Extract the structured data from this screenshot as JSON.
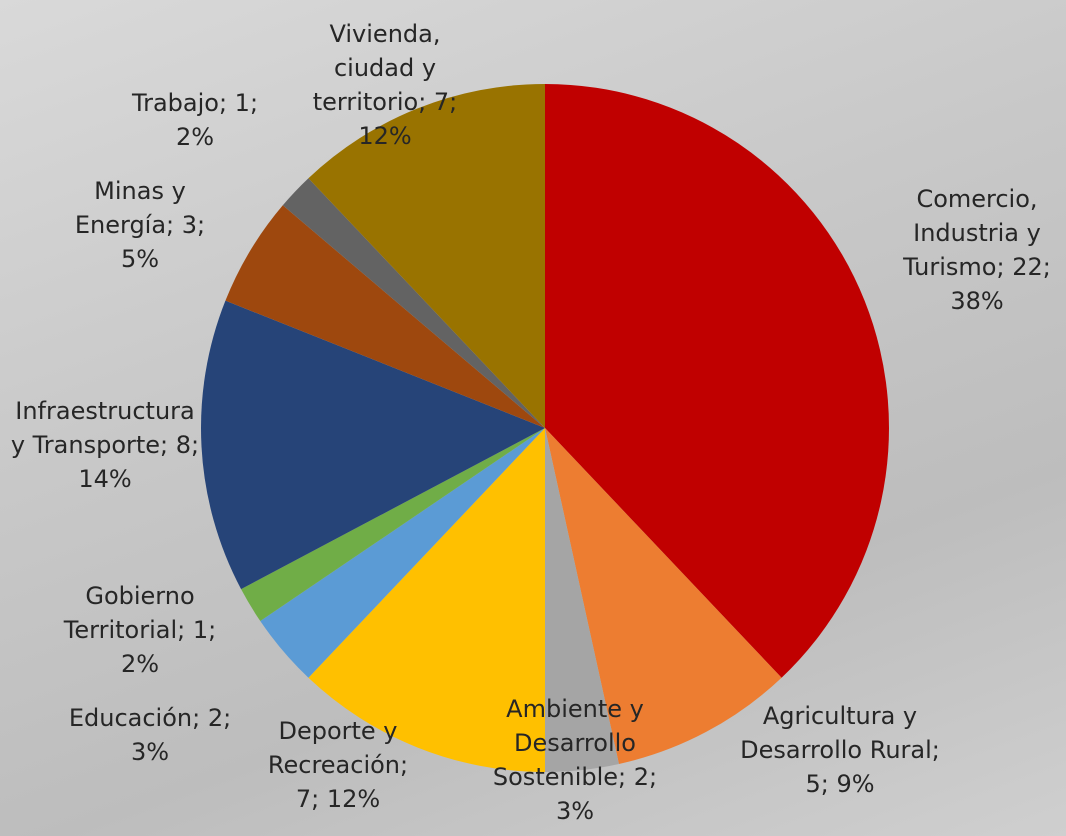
{
  "chart_data": {
    "type": "pie",
    "categories": [
      "Comercio, Industria y Turismo",
      "Agricultura y Desarrollo Rural",
      "Ambiente y Desarrollo Sostenible",
      "Deporte y Recreación",
      "Educación",
      "Gobierno Territorial",
      "Infraestructura y Transporte",
      "Minas y Energía",
      "Trabajo",
      "Vivienda, ciudad y territorio"
    ],
    "values": [
      22,
      5,
      2,
      7,
      2,
      1,
      8,
      3,
      1,
      7
    ],
    "percentages": [
      38,
      9,
      3,
      12,
      3,
      2,
      14,
      5,
      2,
      12
    ],
    "value_labels": [
      "Comercio, Industria y Turismo; 22; 38%",
      "Agricultura y Desarrollo Rural; 5; 9%",
      "Ambiente y Desarrollo Sostenible; 2; 3%",
      "Deporte y Recreación; 7; 12%",
      "Educación; 2; 3%",
      "Gobierno Territorial; 1; 2%",
      "Infraestructura y Transporte; 8; 14%",
      "Minas y Energía; 3; 5%",
      "Trabajo; 1; 2%",
      "Vivienda, ciudad y territorio; 7; 12%"
    ],
    "colors": [
      "#c00000",
      "#ed7d31",
      "#a5a5a5",
      "#ffc000",
      "#5b9bd5",
      "#70ad47",
      "#264478",
      "#9e480e",
      "#636363",
      "#997300"
    ]
  }
}
